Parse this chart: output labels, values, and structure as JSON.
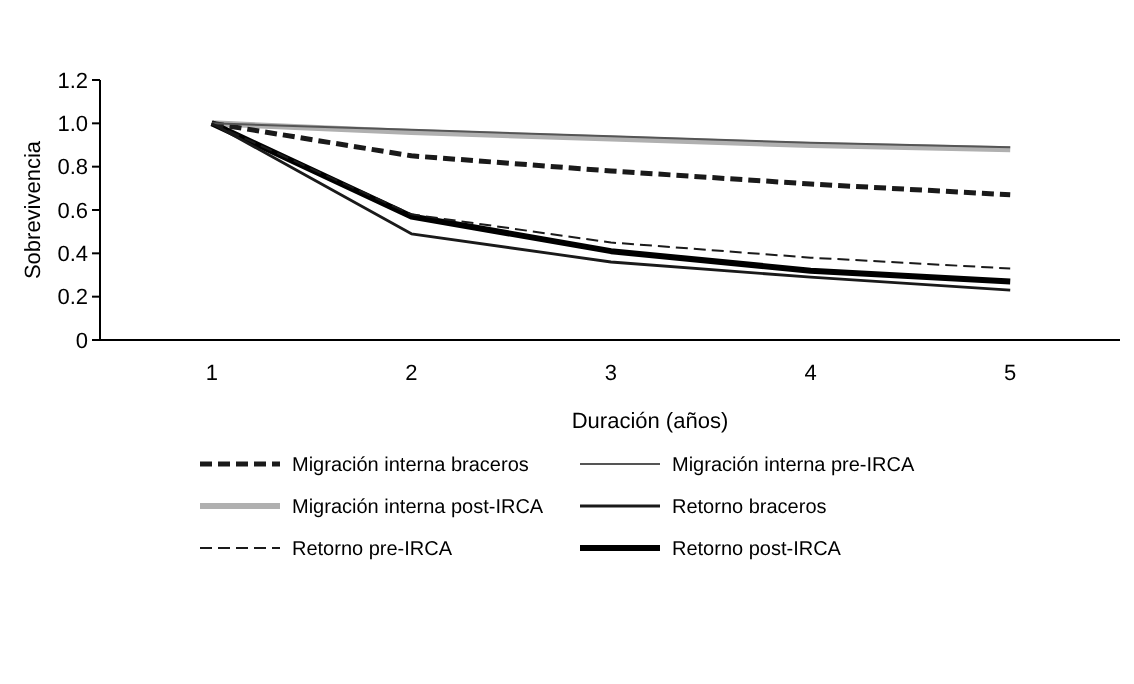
{
  "chart_data": {
    "type": "line",
    "xlabel": "Duración (años)",
    "ylabel": "Sobrevivencia",
    "x": [
      1,
      2,
      3,
      4,
      5
    ],
    "xlim": [
      0.4,
      5.55
    ],
    "xticks": [
      1,
      2,
      3,
      4,
      5
    ],
    "ylim": [
      0,
      1.2
    ],
    "yticks": [
      0,
      {
        "value": 0.2,
        "label": "0.2"
      },
      {
        "value": 0.4,
        "label": "0.4"
      },
      {
        "value": 0.6,
        "label": "0.6"
      },
      {
        "value": 0.8,
        "label": "0.8"
      },
      {
        "value": 1,
        "label": "1.0"
      },
      {
        "value": 1.2,
        "label": "1.2"
      }
    ],
    "grid": false,
    "legend": "bottom",
    "marker": "none",
    "series": [
      {
        "name": "Migración interna braceros",
        "color": "#1a1a1a",
        "line_style": "dashed",
        "values": [
          1,
          0.85,
          0.78,
          0.72,
          0.67
        ]
      },
      {
        "name": "Migración interna pre-IRCA",
        "color": "#555555",
        "line_style": "solid",
        "values": [
          1,
          0.97,
          0.94,
          0.91,
          0.89
        ]
      },
      {
        "name": "Migración interna post-IRCA",
        "color": "#b0b0b0",
        "line_style": "solid",
        "values": [
          1,
          0.96,
          0.93,
          0.9,
          0.88
        ]
      },
      {
        "name": "Retorno braceros",
        "color": "#1a1a1a",
        "line_style": "solid",
        "values": [
          1,
          0.49,
          0.36,
          0.29,
          0.23
        ]
      },
      {
        "name": "Retorno pre-IRCA",
        "color": "#1a1a1a",
        "line_style": "dashed",
        "values": [
          1,
          0.58,
          0.45,
          0.38,
          0.33
        ]
      },
      {
        "name": "Retorno post-IRCA",
        "color": "#000000",
        "line_style": "solid",
        "values": [
          1,
          0.57,
          0.41,
          0.32,
          0.27
        ]
      }
    ]
  }
}
